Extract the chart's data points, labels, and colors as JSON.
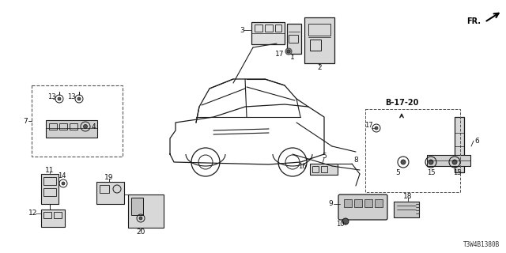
{
  "bg_color": "#ffffff",
  "diagram_code": "T3W4B1380B",
  "line_color": "#1a1a1a",
  "label_color": "#111111",
  "fr_text": "FR.",
  "b1720_text": "B-17-20"
}
